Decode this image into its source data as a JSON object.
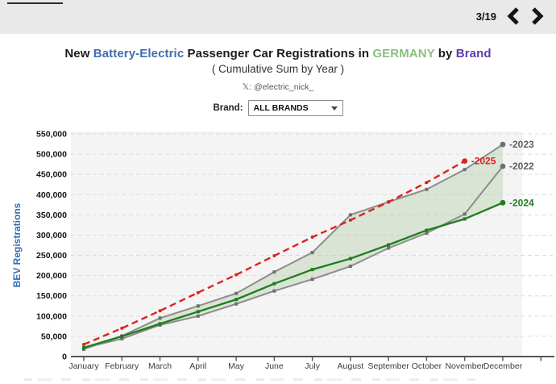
{
  "topbar": {
    "page_indicator": "3/19",
    "prev_icon": "chevron-left",
    "next_icon": "chevron-right",
    "bg_color": "#e9e9e9"
  },
  "title": {
    "part1": "New",
    "part2": "Battery-Electric",
    "part3": "Passenger Car Registrations in",
    "part4": "GERMANY",
    "part5": "by",
    "part6": "Brand",
    "subtitle": "( Cumulative Sum by Year )",
    "handle": "𝕏: @electric_nick_"
  },
  "controls": {
    "brand_label": "Brand:",
    "brand_value": "ALL BRANDS",
    "caret_icon": "caret-down"
  },
  "colors": {
    "title_blue": "#3d6fae",
    "title_green": "#8cbd80",
    "title_purple": "#5b3da6",
    "axis_title_blue": "#2e6db4",
    "gray_line": "#8c8c8c",
    "gray_marker": "#6f6f6f",
    "green_line": "#1e7d1e",
    "red_line": "#da2323",
    "fill_band": "#a9c79b",
    "plot_bg": "#f4f4f4",
    "gridline": "#dcdcdc",
    "axis": "#555555"
  },
  "chart_data": {
    "type": "line",
    "title": "New Battery-Electric Passenger Car Registrations in GERMANY by Brand",
    "subtitle": "( Cumulative Sum by Year )",
    "xlabel": "",
    "ylabel": "BEV Registrations",
    "ylim": [
      0,
      550000
    ],
    "ytick_step": 50000,
    "grid": true,
    "legend_position": "line-end-labels",
    "categories": [
      "January",
      "February",
      "March",
      "April",
      "May",
      "June",
      "July",
      "August",
      "September",
      "October",
      "November",
      "December"
    ],
    "series": [
      {
        "name": "2022",
        "color": "#8c8c8c",
        "style": "solid",
        "marker": "square",
        "values": [
          21000,
          44000,
          78000,
          100000,
          130000,
          162000,
          191000,
          223000,
          268000,
          305000,
          352000,
          470000
        ]
      },
      {
        "name": "2023",
        "color": "#8c8c8c",
        "style": "solid",
        "marker": "square",
        "values": [
          18000,
          51000,
          95000,
          125000,
          156000,
          209000,
          257000,
          350000,
          382000,
          413000,
          462000,
          524000
        ]
      },
      {
        "name": "2024",
        "color": "#1e7d1e",
        "style": "solid",
        "marker": "square",
        "values": [
          22000,
          50000,
          81000,
          111000,
          141000,
          180000,
          215000,
          242000,
          276000,
          312000,
          340000,
          380000
        ]
      },
      {
        "name": "2025",
        "color": "#da2323",
        "style": "dashed",
        "marker": "circle",
        "values": [
          30000,
          70000,
          113000,
          158000,
          202000,
          249000,
          295000,
          337000,
          382000,
          430000,
          483000
        ]
      }
    ],
    "fill_band": {
      "between": [
        "2023",
        "min(2022,2024)"
      ],
      "color": "#a9c79b",
      "opacity": 0.35
    }
  }
}
